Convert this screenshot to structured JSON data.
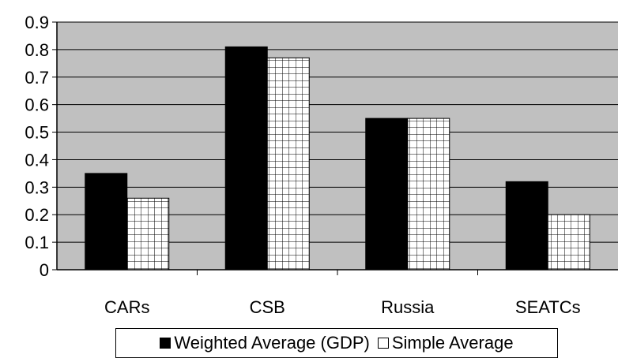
{
  "chart_data": {
    "type": "bar",
    "categories": [
      "CARs",
      "CSB",
      "Russia",
      "SEATCs"
    ],
    "series": [
      {
        "name": "Weighted Average (GDP)",
        "values": [
          0.35,
          0.81,
          0.55,
          0.32
        ],
        "fill": "solid",
        "color": "#000000"
      },
      {
        "name": "Simple Average",
        "values": [
          0.26,
          0.77,
          0.55,
          0.2
        ],
        "fill": "grid",
        "color": "#ffffff"
      }
    ],
    "ylim": [
      0,
      0.9
    ],
    "yticks": [
      "0",
      "0.1",
      "0.2",
      "0.3",
      "0.4",
      "0.5",
      "0.6",
      "0.7",
      "0.8",
      "0.9"
    ],
    "title": "",
    "xlabel": "",
    "ylabel": "",
    "grid": true,
    "legend_position": "bottom",
    "plot_background": "#c0c0c0"
  }
}
